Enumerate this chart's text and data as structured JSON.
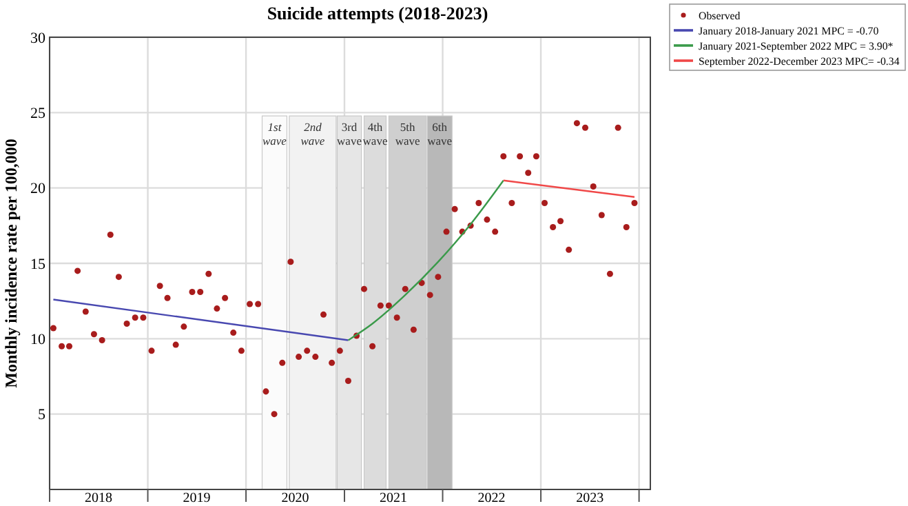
{
  "chart_data": {
    "type": "scatter",
    "title": "Suicide attempts (2018-2023)",
    "ylabel": "Monthly incidence rate per 100,000",
    "xlim": [
      "2018-01-01",
      "2024-02-12"
    ],
    "ylim": [
      0,
      30
    ],
    "xticks": [
      {
        "value": "2018-01-01",
        "label": null
      },
      {
        "value": "2018-07-02",
        "label": "2018"
      },
      {
        "value": "2019-01-01",
        "label": null
      },
      {
        "value": "2019-07-02",
        "label": "2019"
      },
      {
        "value": "2020-01-01",
        "label": null
      },
      {
        "value": "2020-07-02",
        "label": "2020"
      },
      {
        "value": "2021-01-01",
        "label": null
      },
      {
        "value": "2021-07-02",
        "label": "2021"
      },
      {
        "value": "2022-01-01",
        "label": null
      },
      {
        "value": "2022-07-02",
        "label": "2022"
      },
      {
        "value": "2023-01-01",
        "label": null
      },
      {
        "value": "2023-07-02",
        "label": "2023"
      },
      {
        "value": "2024-01-01",
        "label": null
      }
    ],
    "yticks": [
      5,
      10,
      15,
      20,
      25,
      30
    ],
    "grid": true,
    "legend": "top right",
    "bands": [
      {
        "axis": "x",
        "from": "2020-03-01",
        "to": "2020-06-01",
        "label": "1st wave",
        "color": "#fbfbfb"
      },
      {
        "axis": "x",
        "from": "2020-06-10",
        "to": "2020-12-01",
        "label": "2nd wave",
        "color": "#f2f2f2"
      },
      {
        "axis": "x",
        "from": "2020-12-05",
        "to": "2021-03-05",
        "label": "3rd wave",
        "color": "#e6e6e6"
      },
      {
        "axis": "x",
        "from": "2021-03-15",
        "to": "2021-06-05",
        "label": "4th wave",
        "color": "#dcdcdc"
      },
      {
        "axis": "x",
        "from": "2021-06-15",
        "to": "2021-11-01",
        "label": "5th wave",
        "color": "#cfcfcf"
      },
      {
        "axis": "x",
        "from": "2021-11-05",
        "to": "2022-02-05",
        "label": "6th wave",
        "color": "#b8b8b8"
      }
    ],
    "series": [
      {
        "name": "Observed",
        "color": "#a81c1c",
        "marker": "circle",
        "x": [
          "2018-01-15",
          "2018-02-15",
          "2018-03-15",
          "2018-04-15",
          "2018-05-15",
          "2018-06-15",
          "2018-07-15",
          "2018-08-15",
          "2018-09-15",
          "2018-10-15",
          "2018-11-15",
          "2018-12-15",
          "2019-01-15",
          "2019-02-15",
          "2019-03-15",
          "2019-04-15",
          "2019-05-15",
          "2019-06-15",
          "2019-07-15",
          "2019-08-15",
          "2019-09-15",
          "2019-10-15",
          "2019-11-15",
          "2019-12-15",
          "2020-01-15",
          "2020-02-15",
          "2020-03-15",
          "2020-04-15",
          "2020-05-15",
          "2020-06-15",
          "2020-07-15",
          "2020-08-15",
          "2020-09-15",
          "2020-10-15",
          "2020-11-15",
          "2020-12-15",
          "2021-01-15",
          "2021-02-15",
          "2021-03-15",
          "2021-04-15",
          "2021-05-15",
          "2021-06-15",
          "2021-07-15",
          "2021-08-15",
          "2021-09-15",
          "2021-10-15",
          "2021-11-15",
          "2021-12-15",
          "2022-01-15",
          "2022-02-15",
          "2022-03-15",
          "2022-04-15",
          "2022-05-15",
          "2022-06-15",
          "2022-07-15",
          "2022-08-15",
          "2022-09-15",
          "2022-10-15",
          "2022-11-15",
          "2022-12-15",
          "2023-01-15",
          "2023-02-15",
          "2023-03-15",
          "2023-04-15",
          "2023-05-15",
          "2023-06-15",
          "2023-07-15",
          "2023-08-15",
          "2023-09-15",
          "2023-10-15",
          "2023-11-15",
          "2023-12-15"
        ],
        "values": [
          10.7,
          9.5,
          9.5,
          14.5,
          11.8,
          10.3,
          9.9,
          16.9,
          14.1,
          11.0,
          11.4,
          11.4,
          9.2,
          13.5,
          12.7,
          9.6,
          10.8,
          13.1,
          13.1,
          14.3,
          12.0,
          12.7,
          10.4,
          9.2,
          12.3,
          12.3,
          6.5,
          5.0,
          8.4,
          15.1,
          8.8,
          9.2,
          8.8,
          11.6,
          8.4,
          9.2,
          7.2,
          10.2,
          13.3,
          9.5,
          12.2,
          12.2,
          11.4,
          13.3,
          10.6,
          13.7,
          12.9,
          14.1,
          17.1,
          18.6,
          17.1,
          17.5,
          19.0,
          17.9,
          17.1,
          22.1,
          19.0,
          22.1,
          21.0,
          22.1,
          19.0,
          17.4,
          17.8,
          15.9,
          24.3,
          24.0,
          20.1,
          18.2,
          14.3,
          24.0,
          17.4,
          19.0
        ]
      },
      {
        "name": "January 2018-January 2021 MPC = -0.70",
        "type": "line",
        "color": "#4848b0",
        "x": [
          "2018-01-15",
          "2021-01-15"
        ],
        "values": [
          12.6,
          9.9
        ]
      },
      {
        "name": "January 2021-September 2022 MPC = 3.90*",
        "type": "line",
        "color": "#3a9a4a",
        "x": [
          "2021-01-15",
          "2021-04-15",
          "2021-08-15",
          "2021-12-15",
          "2022-04-15",
          "2022-08-15"
        ],
        "values": [
          9.9,
          11.0,
          12.9,
          15.1,
          17.6,
          20.5
        ]
      },
      {
        "name": "September 2022-December 2023 MPC= -0.34",
        "type": "line",
        "color": "#f04848",
        "x": [
          "2022-08-15",
          "2023-12-15"
        ],
        "values": [
          20.5,
          19.4
        ]
      }
    ]
  }
}
